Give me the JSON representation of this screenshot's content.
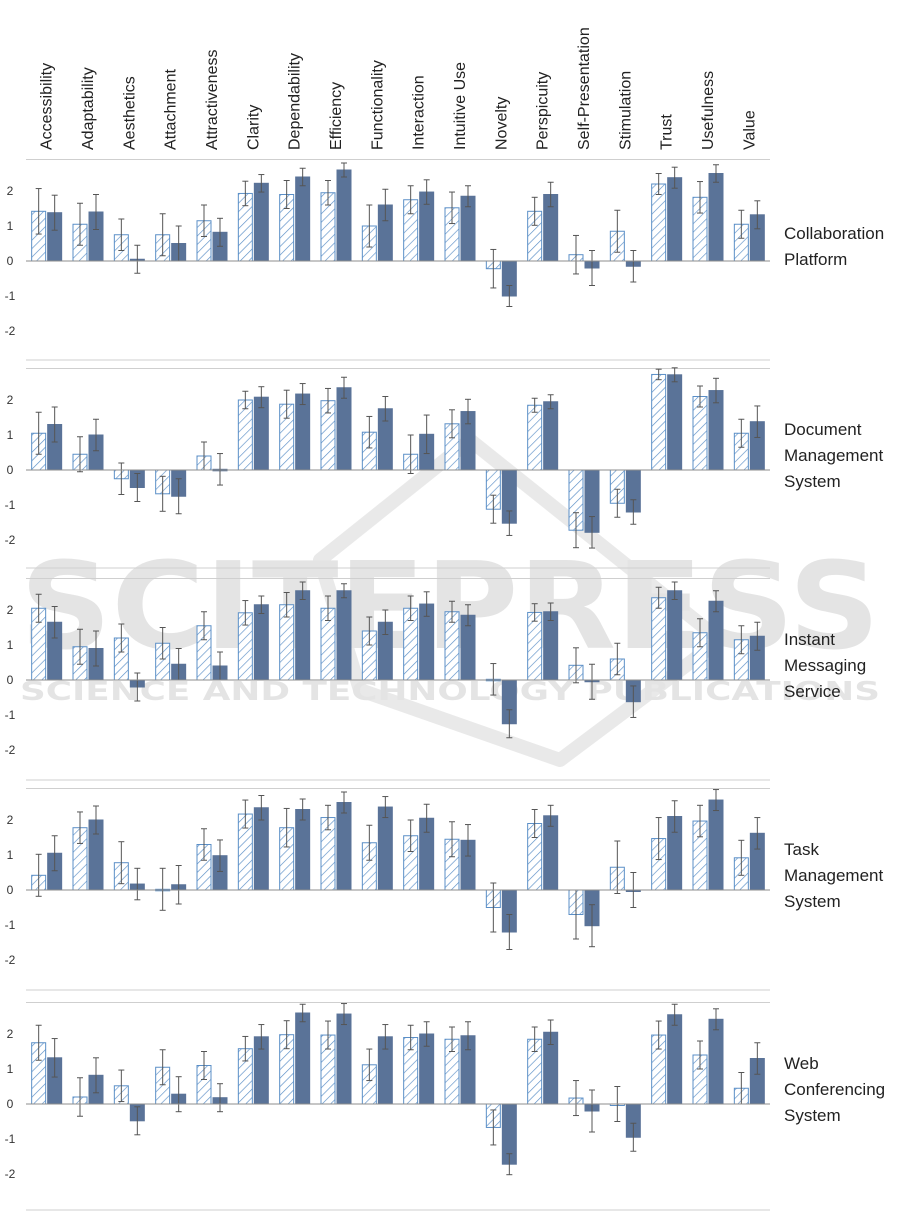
{
  "watermark": {
    "main": "SCITEPRESS",
    "sub": "SCIENCE AND TECHNOLOGY PUBLICATIONS"
  },
  "chart_data": {
    "type": "bar",
    "categories": [
      "Accessibility",
      "Adaptability",
      "Aesthetics",
      "Attachment",
      "Attractiveness",
      "Clarity",
      "Dependability",
      "Efficiency",
      "Functionality",
      "Interaction",
      "Intuitive Use",
      "Novelty",
      "Perspicuity",
      "Self-Presentation",
      "Stimulation",
      "Trust",
      "Usefulness",
      "Value"
    ],
    "ylim": [
      -2.5,
      2.9
    ],
    "yticks": [
      2,
      1,
      0,
      -1,
      -2
    ],
    "ytick_labels": [
      "2",
      "1",
      "0",
      "-1",
      "-2"
    ],
    "colors": {
      "hatched": "#5b8fc7",
      "solid": "#5a7398"
    },
    "panels": [
      {
        "title_lines": [
          "Collaboration",
          "Platform"
        ],
        "series": [
          {
            "pattern": "hatched",
            "values": [
              1.42,
              1.05,
              0.75,
              0.75,
              1.15,
              1.93,
              1.9,
              1.95,
              1.0,
              1.75,
              1.52,
              -0.22,
              1.42,
              0.18,
              0.85,
              2.2,
              1.82,
              1.05
            ],
            "errors": [
              0.65,
              0.6,
              0.45,
              0.6,
              0.45,
              0.35,
              0.4,
              0.35,
              0.6,
              0.4,
              0.45,
              0.55,
              0.4,
              0.55,
              0.6,
              0.3,
              0.45,
              0.4
            ]
          },
          {
            "pattern": "solid",
            "values": [
              1.38,
              1.4,
              0.05,
              0.5,
              0.82,
              2.22,
              2.4,
              2.6,
              1.6,
              1.97,
              1.85,
              -1.0,
              1.9,
              -0.2,
              -0.15,
              2.38,
              2.5,
              1.32
            ],
            "errors": [
              0.5,
              0.5,
              0.4,
              0.5,
              0.4,
              0.25,
              0.25,
              0.2,
              0.45,
              0.35,
              0.3,
              0.3,
              0.35,
              0.5,
              0.45,
              0.3,
              0.25,
              0.4
            ]
          }
        ]
      },
      {
        "title_lines": [
          "Document",
          "Management",
          "System"
        ],
        "series": [
          {
            "pattern": "hatched",
            "values": [
              1.05,
              0.45,
              -0.25,
              -0.68,
              0.4,
              2.0,
              1.88,
              1.98,
              1.08,
              0.45,
              1.32,
              -1.12,
              1.85,
              -1.72,
              -0.95,
              2.73,
              2.1,
              1.05
            ],
            "errors": [
              0.6,
              0.5,
              0.45,
              0.5,
              0.4,
              0.25,
              0.4,
              0.35,
              0.45,
              0.55,
              0.4,
              0.4,
              0.2,
              0.5,
              0.4,
              0.15,
              0.3,
              0.4
            ]
          },
          {
            "pattern": "solid",
            "values": [
              1.3,
              1.0,
              -0.5,
              -0.75,
              0.02,
              2.08,
              2.17,
              2.35,
              1.75,
              1.02,
              1.67,
              -1.52,
              1.95,
              -1.78,
              -1.2,
              2.72,
              2.27,
              1.38
            ],
            "errors": [
              0.5,
              0.45,
              0.4,
              0.5,
              0.45,
              0.3,
              0.3,
              0.3,
              0.35,
              0.55,
              0.35,
              0.35,
              0.2,
              0.45,
              0.35,
              0.2,
              0.35,
              0.45
            ]
          }
        ]
      },
      {
        "title_lines": [
          "Instant",
          "Messaging",
          "Service"
        ],
        "series": [
          {
            "pattern": "hatched",
            "values": [
              2.05,
              0.95,
              1.2,
              1.05,
              1.55,
              1.92,
              2.15,
              2.05,
              1.4,
              2.05,
              1.95,
              0.02,
              1.93,
              0.42,
              0.6,
              2.35,
              1.35,
              1.15
            ],
            "errors": [
              0.4,
              0.5,
              0.4,
              0.45,
              0.4,
              0.35,
              0.35,
              0.35,
              0.4,
              0.35,
              0.3,
              0.45,
              0.25,
              0.5,
              0.45,
              0.3,
              0.4,
              0.4
            ]
          },
          {
            "pattern": "solid",
            "values": [
              1.65,
              0.9,
              -0.2,
              0.45,
              0.4,
              2.15,
              2.55,
              2.55,
              1.65,
              2.17,
              1.85,
              -1.25,
              1.95,
              -0.05,
              -0.62,
              2.55,
              2.25,
              1.25
            ],
            "errors": [
              0.45,
              0.5,
              0.4,
              0.45,
              0.4,
              0.25,
              0.25,
              0.2,
              0.35,
              0.35,
              0.3,
              0.4,
              0.25,
              0.5,
              0.45,
              0.25,
              0.3,
              0.4
            ]
          }
        ]
      },
      {
        "title_lines": [
          "Task",
          "Management",
          "System"
        ],
        "series": [
          {
            "pattern": "hatched",
            "values": [
              0.42,
              1.78,
              0.78,
              0.02,
              1.3,
              2.17,
              1.78,
              2.07,
              1.35,
              1.55,
              1.45,
              -0.5,
              1.9,
              -0.7,
              0.65,
              1.47,
              1.97,
              0.92
            ],
            "errors": [
              0.6,
              0.45,
              0.6,
              0.6,
              0.45,
              0.4,
              0.55,
              0.35,
              0.5,
              0.45,
              0.5,
              0.7,
              0.4,
              0.7,
              0.75,
              0.6,
              0.45,
              0.5
            ]
          },
          {
            "pattern": "solid",
            "values": [
              1.05,
              2.0,
              0.17,
              0.15,
              0.98,
              2.35,
              2.3,
              2.5,
              2.37,
              2.05,
              1.42,
              -1.2,
              2.12,
              -1.02,
              0.0,
              2.1,
              2.57,
              1.62
            ],
            "errors": [
              0.5,
              0.4,
              0.45,
              0.55,
              0.45,
              0.35,
              0.3,
              0.3,
              0.3,
              0.4,
              0.45,
              0.5,
              0.3,
              0.6,
              0.5,
              0.45,
              0.3,
              0.45
            ]
          }
        ]
      },
      {
        "title_lines": [
          "Web",
          "Conferencing",
          "System"
        ],
        "series": [
          {
            "pattern": "hatched",
            "values": [
              1.75,
              0.2,
              0.52,
              1.05,
              1.1,
              1.58,
              1.98,
              1.97,
              1.12,
              1.9,
              1.85,
              -0.67,
              1.85,
              0.17,
              0.0,
              1.97,
              1.4,
              0.45
            ],
            "errors": [
              0.5,
              0.55,
              0.45,
              0.5,
              0.4,
              0.35,
              0.4,
              0.4,
              0.45,
              0.35,
              0.35,
              0.5,
              0.35,
              0.5,
              0.5,
              0.4,
              0.4,
              0.45
            ]
          },
          {
            "pattern": "solid",
            "values": [
              1.32,
              0.82,
              -0.48,
              0.28,
              0.18,
              1.92,
              2.6,
              2.57,
              1.92,
              2.0,
              1.95,
              -1.72,
              2.05,
              -0.2,
              -0.95,
              2.55,
              2.42,
              1.3
            ],
            "errors": [
              0.55,
              0.5,
              0.4,
              0.5,
              0.4,
              0.35,
              0.25,
              0.3,
              0.35,
              0.35,
              0.4,
              0.3,
              0.35,
              0.6,
              0.4,
              0.3,
              0.3,
              0.45
            ]
          }
        ]
      }
    ]
  }
}
